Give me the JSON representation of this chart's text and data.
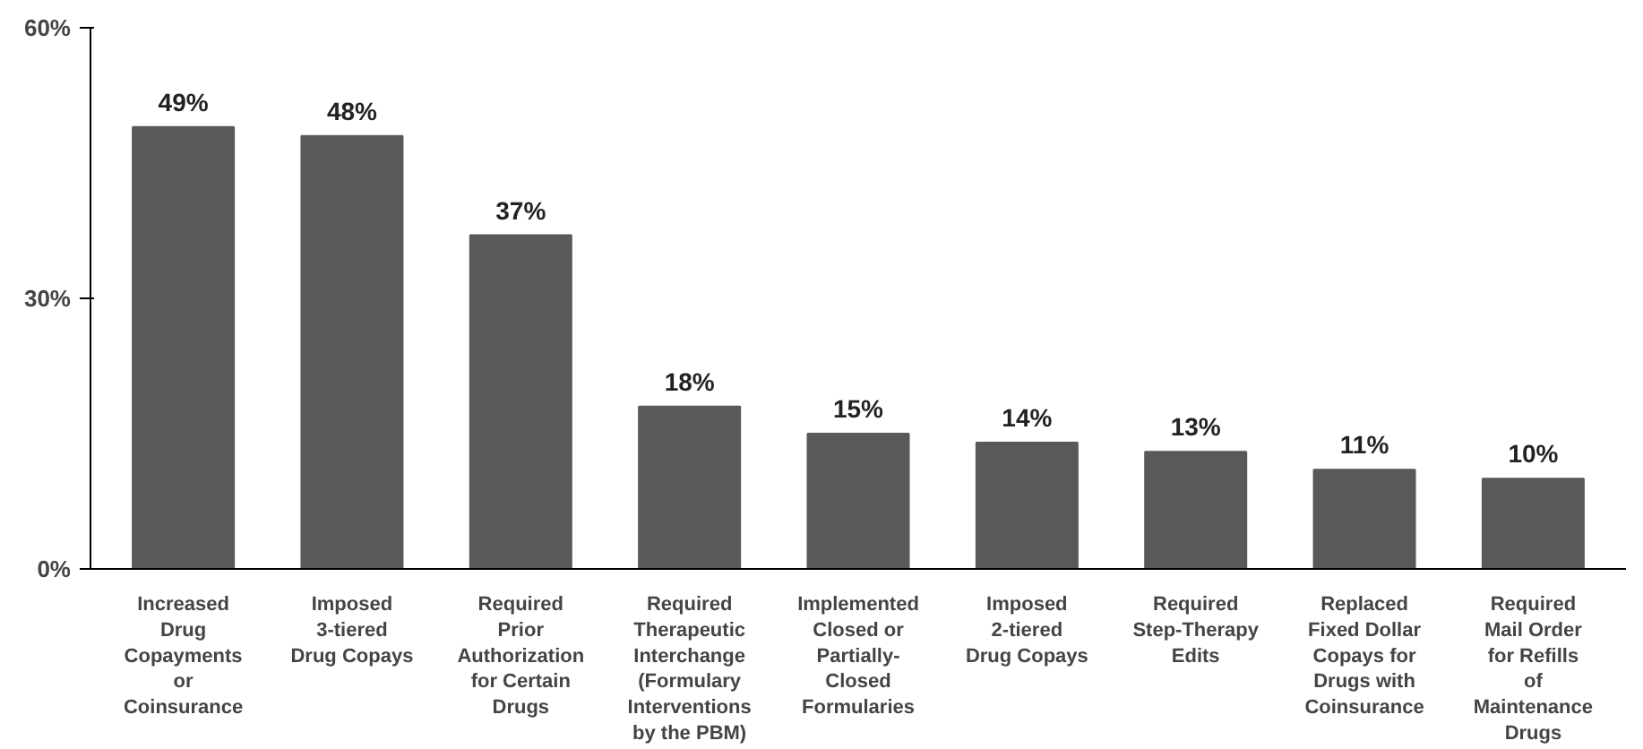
{
  "chart_data": {
    "type": "bar",
    "categories": [
      "Increased Drug Copayments or Coinsurance",
      "Imposed 3-tiered Drug Copays",
      "Required Prior Authorization for Certain Drugs",
      "Required Therapeutic Interchange (Formulary Interventions by the PBM)",
      "Implemented Closed or Partially-Closed Formularies",
      "Imposed 2-tiered Drug Copays",
      "Required Step-Therapy Edits",
      "Replaced Fixed Dollar Copays for Drugs with Coinsurance",
      "Required Mail Order for Refills of Maintenance Drugs"
    ],
    "values": [
      49,
      48,
      37,
      18,
      15,
      14,
      13,
      11,
      10
    ],
    "color": "#595959",
    "ylim": [
      0,
      60
    ],
    "yticks": [
      {
        "value": 0,
        "label": "0%"
      },
      {
        "value": 30,
        "label": "30%"
      },
      {
        "value": 60,
        "label": "60%"
      }
    ],
    "value_labels": [
      "49%",
      "48%",
      "37%",
      "18%",
      "15%",
      "14%",
      "13%",
      "11%",
      "10%"
    ],
    "grid": false
  }
}
